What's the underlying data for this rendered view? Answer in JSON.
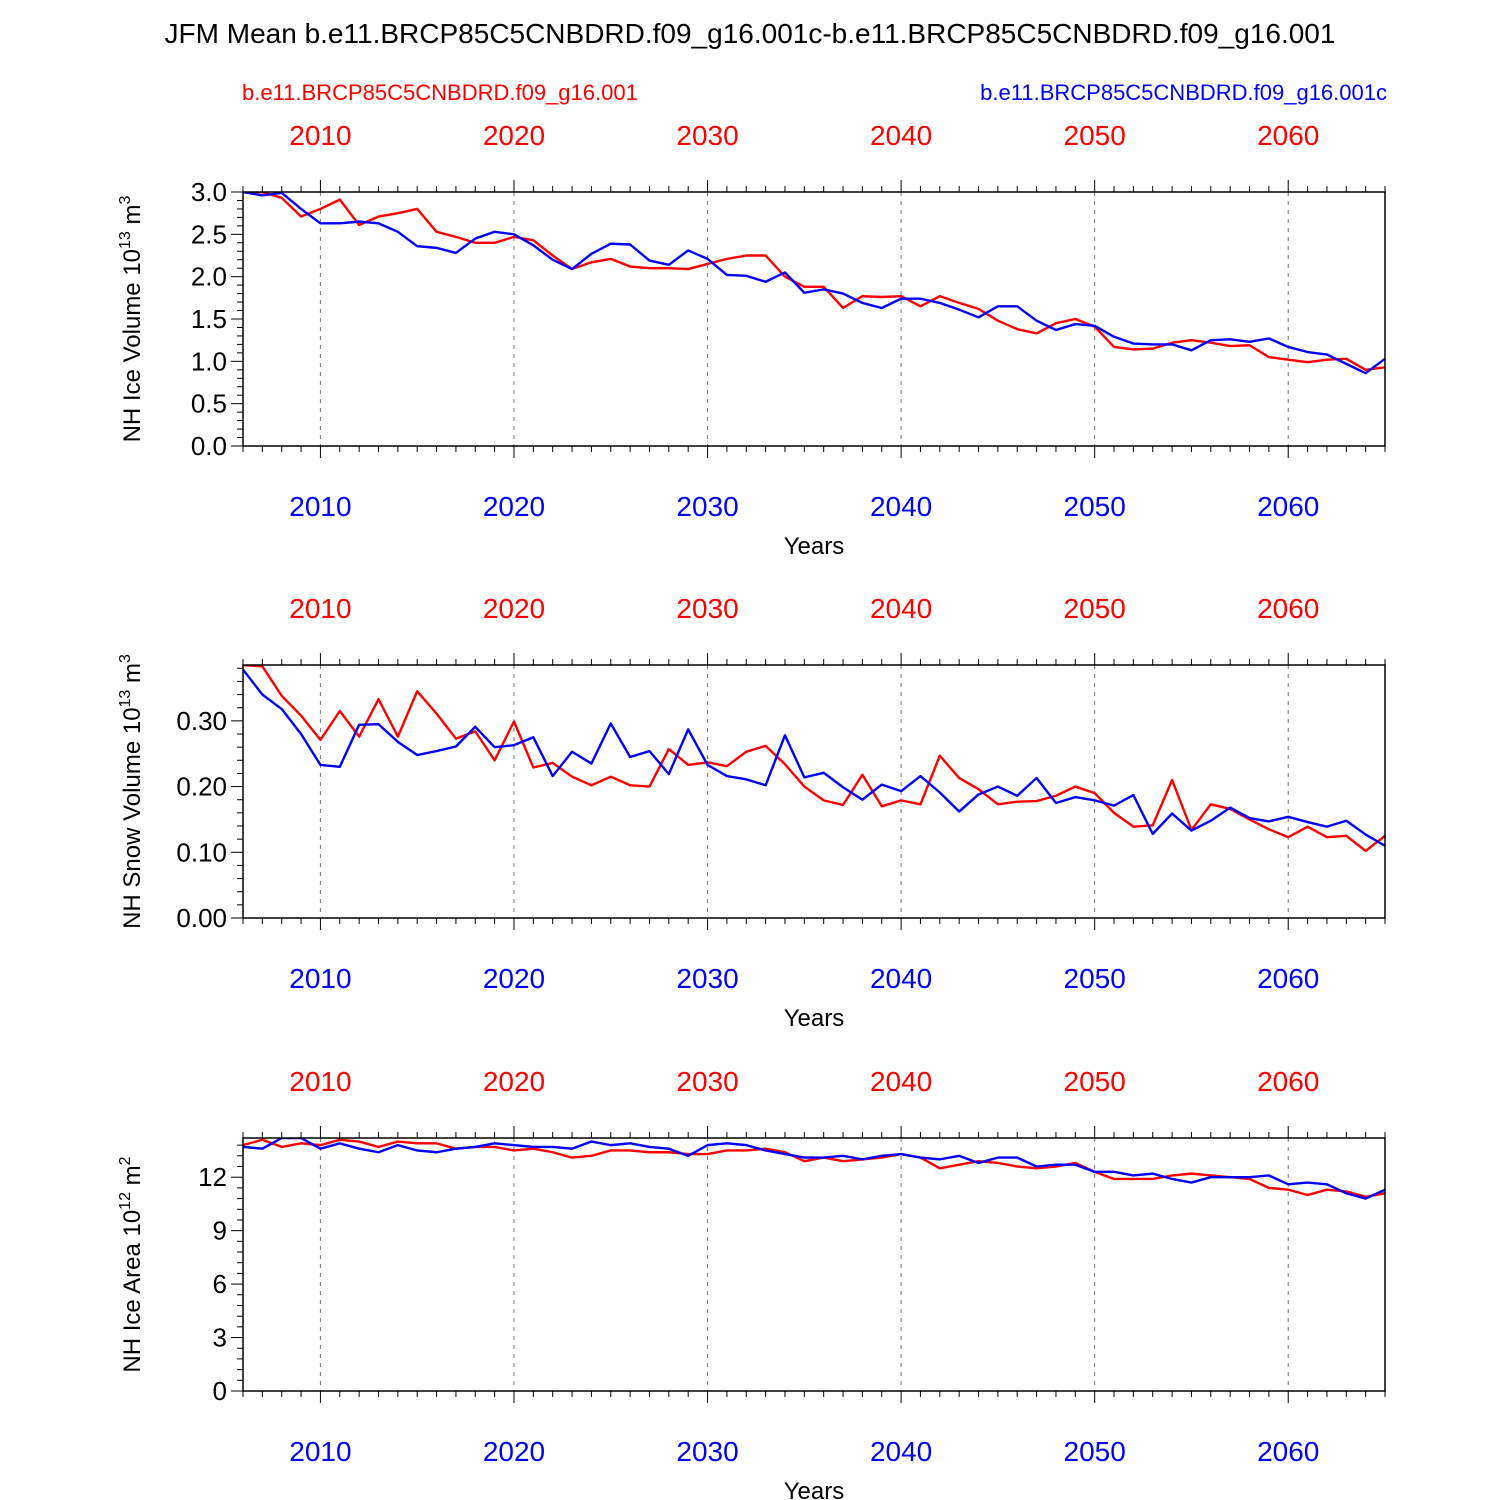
{
  "title": "JFM Mean b.e11.BRCP85C5CNBDRD.f09_g16.001c-b.e11.BRCP85C5CNBDRD.f09_g16.001",
  "legend": {
    "red_label": "b.e11.BRCP85C5CNBDRD.f09_g16.001",
    "blue_label": "b.e11.BRCP85C5CNBDRD.f09_g16.001c"
  },
  "colors": {
    "red": "#ff0000",
    "blue": "#0000ff",
    "grid": "#777777",
    "axis": "#000000"
  },
  "chart_data": [
    {
      "type": "line",
      "name": "ice-volume",
      "title": "",
      "ylabel_main": "NH Ice Volume 10",
      "ylabel_exp": "13",
      "ylabel_unit": " m",
      "ylabel_unit_exp": "3",
      "xlabel": "Years",
      "xlim": [
        2006,
        2065
      ],
      "ylim": [
        0,
        3
      ],
      "yticks": [
        "0.0",
        "0.5",
        "1.0",
        "1.5",
        "2.0",
        "2.5",
        "3.0"
      ],
      "ytick_values": [
        0,
        0.5,
        1.0,
        1.5,
        2.0,
        2.5,
        3.0
      ],
      "xticks": [
        "2010",
        "2020",
        "2030",
        "2040",
        "2050",
        "2060"
      ],
      "xtick_values": [
        2010,
        2020,
        2030,
        2040,
        2050,
        2060
      ],
      "x_start": 2006,
      "series": [
        {
          "name": "b.e11.BRCP85C5CNBDRD.f09_g16.001",
          "color": "red",
          "values": [
            3.0,
            3.0,
            2.93,
            2.71,
            2.8,
            2.91,
            2.61,
            2.71,
            2.75,
            2.8,
            2.53,
            2.47,
            2.4,
            2.4,
            2.47,
            2.43,
            2.25,
            2.09,
            2.17,
            2.21,
            2.12,
            2.1,
            2.1,
            2.09,
            2.15,
            2.21,
            2.25,
            2.25,
            2.0,
            1.88,
            1.88,
            1.63,
            1.77,
            1.76,
            1.77,
            1.65,
            1.77,
            1.69,
            1.62,
            1.48,
            1.38,
            1.33,
            1.45,
            1.5,
            1.41,
            1.17,
            1.14,
            1.15,
            1.22,
            1.25,
            1.22,
            1.18,
            1.19,
            1.05,
            1.02,
            0.99,
            1.02,
            1.03,
            0.9,
            0.93
          ]
        },
        {
          "name": "b.e11.BRCP85C5CNBDRD.f09_g16.001c",
          "color": "blue",
          "values": [
            3.0,
            2.96,
            2.99,
            2.8,
            2.63,
            2.63,
            2.65,
            2.63,
            2.53,
            2.36,
            2.34,
            2.28,
            2.45,
            2.53,
            2.5,
            2.37,
            2.2,
            2.09,
            2.27,
            2.39,
            2.38,
            2.19,
            2.14,
            2.31,
            2.21,
            2.02,
            2.01,
            1.94,
            2.05,
            1.81,
            1.85,
            1.8,
            1.69,
            1.63,
            1.74,
            1.74,
            1.69,
            1.61,
            1.52,
            1.65,
            1.65,
            1.48,
            1.37,
            1.44,
            1.42,
            1.29,
            1.21,
            1.2,
            1.2,
            1.13,
            1.25,
            1.26,
            1.23,
            1.27,
            1.17,
            1.11,
            1.08,
            0.97,
            0.86,
            1.03
          ]
        }
      ]
    },
    {
      "type": "line",
      "name": "snow-volume",
      "title": "",
      "ylabel_main": "NH Snow Volume 10",
      "ylabel_exp": "13",
      "ylabel_unit": " m",
      "ylabel_unit_exp": "3",
      "xlabel": "Years",
      "xlim": [
        2006,
        2065
      ],
      "ylim": [
        0,
        0.385
      ],
      "yticks": [
        "0.00",
        "0.10",
        "0.20",
        "0.30"
      ],
      "ytick_values": [
        0,
        0.1,
        0.2,
        0.3
      ],
      "xticks": [
        "2010",
        "2020",
        "2030",
        "2040",
        "2050",
        "2060"
      ],
      "xtick_values": [
        2010,
        2020,
        2030,
        2040,
        2050,
        2060
      ],
      "x_start": 2006,
      "series": [
        {
          "name": "b.e11.BRCP85C5CNBDRD.f09_g16.001",
          "color": "red",
          "values": [
            0.385,
            0.383,
            0.338,
            0.308,
            0.271,
            0.315,
            0.276,
            0.333,
            0.276,
            0.345,
            0.311,
            0.273,
            0.284,
            0.24,
            0.299,
            0.229,
            0.236,
            0.215,
            0.202,
            0.215,
            0.202,
            0.2,
            0.257,
            0.233,
            0.237,
            0.231,
            0.253,
            0.262,
            0.234,
            0.2,
            0.179,
            0.172,
            0.218,
            0.17,
            0.179,
            0.173,
            0.247,
            0.213,
            0.196,
            0.173,
            0.177,
            0.178,
            0.186,
            0.2,
            0.19,
            0.16,
            0.139,
            0.141,
            0.21,
            0.134,
            0.173,
            0.166,
            0.15,
            0.135,
            0.123,
            0.139,
            0.123,
            0.125,
            0.102,
            0.125
          ]
        },
        {
          "name": "b.e11.BRCP85C5CNBDRD.f09_g16.001c",
          "color": "blue",
          "values": [
            0.378,
            0.34,
            0.318,
            0.28,
            0.233,
            0.23,
            0.294,
            0.295,
            0.268,
            0.248,
            0.254,
            0.261,
            0.291,
            0.26,
            0.263,
            0.275,
            0.216,
            0.253,
            0.235,
            0.296,
            0.245,
            0.254,
            0.219,
            0.287,
            0.233,
            0.216,
            0.211,
            0.202,
            0.278,
            0.214,
            0.221,
            0.199,
            0.18,
            0.203,
            0.193,
            0.216,
            0.191,
            0.162,
            0.188,
            0.2,
            0.186,
            0.213,
            0.175,
            0.184,
            0.179,
            0.171,
            0.187,
            0.128,
            0.159,
            0.133,
            0.148,
            0.168,
            0.152,
            0.147,
            0.154,
            0.146,
            0.139,
            0.148,
            0.127,
            0.11
          ]
        }
      ]
    },
    {
      "type": "line",
      "name": "ice-area",
      "title": "",
      "ylabel_main": "NH Ice Area 10",
      "ylabel_exp": "12",
      "ylabel_unit": " m",
      "ylabel_unit_exp": "2",
      "xlabel": "Years",
      "xlim": [
        2006,
        2065
      ],
      "ylim": [
        0,
        14.2
      ],
      "yticks": [
        "0",
        "3",
        "6",
        "9",
        "12"
      ],
      "ytick_values": [
        0,
        3,
        6,
        9,
        12
      ],
      "xticks": [
        "2010",
        "2020",
        "2030",
        "2040",
        "2050",
        "2060"
      ],
      "xtick_values": [
        2010,
        2020,
        2030,
        2040,
        2050,
        2060
      ],
      "x_start": 2006,
      "series": [
        {
          "name": "b.e11.BRCP85C5CNBDRD.f09_g16.001",
          "color": "red",
          "values": [
            13.8,
            14.1,
            13.7,
            13.9,
            13.8,
            14.1,
            14.0,
            13.7,
            14.0,
            13.9,
            13.9,
            13.6,
            13.7,
            13.7,
            13.5,
            13.6,
            13.4,
            13.1,
            13.2,
            13.5,
            13.5,
            13.4,
            13.4,
            13.3,
            13.3,
            13.5,
            13.5,
            13.6,
            13.4,
            12.9,
            13.1,
            12.9,
            13.0,
            13.1,
            13.3,
            13.1,
            12.5,
            12.7,
            12.9,
            12.8,
            12.6,
            12.5,
            12.6,
            12.8,
            12.3,
            11.9,
            11.9,
            11.9,
            12.1,
            12.2,
            12.1,
            12.0,
            11.9,
            11.4,
            11.3,
            11.0,
            11.3,
            11.2,
            10.9,
            11.1
          ]
        },
        {
          "name": "b.e11.BRCP85C5CNBDRD.f09_g16.001c",
          "color": "blue",
          "values": [
            13.7,
            13.6,
            14.2,
            14.2,
            13.6,
            13.9,
            13.6,
            13.4,
            13.8,
            13.5,
            13.4,
            13.6,
            13.7,
            13.9,
            13.8,
            13.7,
            13.7,
            13.6,
            14.0,
            13.8,
            13.9,
            13.7,
            13.6,
            13.2,
            13.8,
            13.9,
            13.8,
            13.5,
            13.3,
            13.1,
            13.1,
            13.2,
            13.0,
            13.2,
            13.3,
            13.1,
            13.0,
            13.2,
            12.8,
            13.1,
            13.1,
            12.6,
            12.7,
            12.7,
            12.3,
            12.3,
            12.1,
            12.2,
            11.9,
            11.7,
            12.0,
            12.0,
            12.0,
            12.1,
            11.6,
            11.7,
            11.6,
            11.1,
            10.8,
            11.3
          ]
        }
      ]
    }
  ]
}
